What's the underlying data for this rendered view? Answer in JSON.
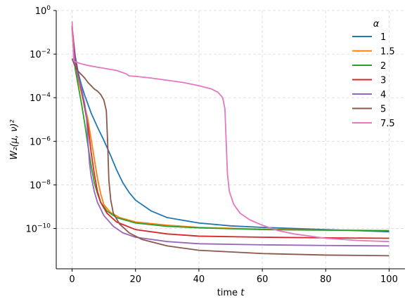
{
  "chart_data": {
    "type": "line",
    "xlabel_main": "time ",
    "xlabel_var": "t",
    "ylabel": "W₂(μ, ν)²",
    "xlim": [
      -5,
      105
    ],
    "xticks": [
      0,
      20,
      40,
      60,
      80,
      100
    ],
    "yscale": "log",
    "ylim_exp": [
      -11.85,
      0
    ],
    "yticks_exp": [
      -10,
      -8,
      -6,
      -4,
      -2,
      0
    ],
    "ytick_labels": [
      "10",
      "10",
      "10",
      "10",
      "10",
      "10"
    ],
    "ytick_exps": [
      "−10",
      "−8",
      "−6",
      "−4",
      "−2",
      "0"
    ],
    "grid": true,
    "legend": {
      "title": "α",
      "placement": "top-right"
    },
    "series": [
      {
        "name": "1",
        "color": "#1f77b4",
        "log10_points": [
          [
            0,
            -0.8
          ],
          [
            0.5,
            -1.5
          ],
          [
            1,
            -2.1
          ],
          [
            2,
            -2.9
          ],
          [
            3,
            -3.45
          ],
          [
            4,
            -3.9
          ],
          [
            6,
            -4.7
          ],
          [
            8,
            -5.35
          ],
          [
            10,
            -5.95
          ],
          [
            12,
            -6.6
          ],
          [
            14,
            -7.3
          ],
          [
            16,
            -7.9
          ],
          [
            18,
            -8.35
          ],
          [
            20,
            -8.7
          ],
          [
            25,
            -9.2
          ],
          [
            30,
            -9.5
          ],
          [
            40,
            -9.75
          ],
          [
            50,
            -9.88
          ],
          [
            60,
            -9.95
          ],
          [
            70,
            -10.0
          ],
          [
            80,
            -10.05
          ],
          [
            90,
            -10.1
          ],
          [
            100,
            -10.15
          ]
        ]
      },
      {
        "name": "1.5",
        "color": "#ff7f0e",
        "log10_points": [
          [
            0,
            -0.7
          ],
          [
            0.5,
            -1.6
          ],
          [
            1,
            -2.4
          ],
          [
            2,
            -3.2
          ],
          [
            3,
            -3.8
          ],
          [
            4,
            -4.4
          ],
          [
            5,
            -5.0
          ],
          [
            6,
            -5.9
          ],
          [
            7,
            -6.8
          ],
          [
            8,
            -7.7
          ],
          [
            9,
            -8.4
          ],
          [
            10,
            -8.9
          ],
          [
            12,
            -9.25
          ],
          [
            15,
            -9.5
          ],
          [
            20,
            -9.7
          ],
          [
            30,
            -9.85
          ],
          [
            40,
            -9.95
          ],
          [
            60,
            -10.03
          ],
          [
            80,
            -10.07
          ],
          [
            100,
            -10.1
          ]
        ]
      },
      {
        "name": "2",
        "color": "#2ca02c",
        "log10_points": [
          [
            0,
            -0.8
          ],
          [
            0.5,
            -1.8
          ],
          [
            1,
            -2.7
          ],
          [
            2,
            -3.5
          ],
          [
            3,
            -4.3
          ],
          [
            4,
            -5.2
          ],
          [
            5,
            -6.2
          ],
          [
            6,
            -7.1
          ],
          [
            7,
            -7.9
          ],
          [
            8,
            -8.4
          ],
          [
            9,
            -8.8
          ],
          [
            11,
            -9.2
          ],
          [
            14,
            -9.5
          ],
          [
            20,
            -9.75
          ],
          [
            30,
            -9.9
          ],
          [
            40,
            -9.97
          ],
          [
            60,
            -10.05
          ],
          [
            80,
            -10.08
          ],
          [
            100,
            -10.1
          ]
        ]
      },
      {
        "name": "3",
        "color": "#d62728",
        "log10_points": [
          [
            0,
            -0.7
          ],
          [
            0.5,
            -1.5
          ],
          [
            1,
            -2.3
          ],
          [
            2,
            -3.0
          ],
          [
            3,
            -3.7
          ],
          [
            4,
            -4.5
          ],
          [
            5,
            -5.3
          ],
          [
            6,
            -6.5
          ],
          [
            7,
            -7.5
          ],
          [
            8,
            -8.3
          ],
          [
            9,
            -8.8
          ],
          [
            11,
            -9.3
          ],
          [
            14,
            -9.7
          ],
          [
            20,
            -10.05
          ],
          [
            30,
            -10.25
          ],
          [
            40,
            -10.35
          ],
          [
            60,
            -10.4
          ],
          [
            80,
            -10.43
          ],
          [
            100,
            -10.45
          ]
        ]
      },
      {
        "name": "4",
        "color": "#9467bd",
        "log10_points": [
          [
            0,
            -0.9
          ],
          [
            0.5,
            -1.8
          ],
          [
            1,
            -2.5
          ],
          [
            2,
            -3.1
          ],
          [
            3,
            -3.6
          ],
          [
            4,
            -4.3
          ],
          [
            4.6,
            -5.0
          ],
          [
            5,
            -6.0
          ],
          [
            5.5,
            -7.0
          ],
          [
            6,
            -7.6
          ],
          [
            7,
            -8.3
          ],
          [
            8,
            -8.8
          ],
          [
            10,
            -9.4
          ],
          [
            13,
            -9.9
          ],
          [
            16,
            -10.2
          ],
          [
            20,
            -10.4
          ],
          [
            30,
            -10.6
          ],
          [
            40,
            -10.7
          ],
          [
            60,
            -10.75
          ],
          [
            80,
            -10.78
          ],
          [
            100,
            -10.8
          ]
        ]
      },
      {
        "name": "5",
        "color": "#8c564b",
        "log10_points": [
          [
            0,
            -2.2
          ],
          [
            1,
            -2.6
          ],
          [
            2,
            -2.8
          ],
          [
            3,
            -2.95
          ],
          [
            4,
            -3.1
          ],
          [
            5,
            -3.3
          ],
          [
            6,
            -3.45
          ],
          [
            7,
            -3.6
          ],
          [
            8,
            -3.7
          ],
          [
            9,
            -3.85
          ],
          [
            10,
            -4.1
          ],
          [
            10.8,
            -4.6
          ],
          [
            11.2,
            -6.0
          ],
          [
            11.6,
            -7.8
          ],
          [
            12.2,
            -8.7
          ],
          [
            13,
            -9.3
          ],
          [
            15,
            -9.8
          ],
          [
            18,
            -10.2
          ],
          [
            22,
            -10.5
          ],
          [
            30,
            -10.8
          ],
          [
            40,
            -11.0
          ],
          [
            60,
            -11.15
          ],
          [
            80,
            -11.22
          ],
          [
            100,
            -11.25
          ]
        ]
      },
      {
        "name": "7.5",
        "color": "#e377c2",
        "log10_points": [
          [
            0,
            -0.5
          ],
          [
            0.3,
            -1.5
          ],
          [
            0.5,
            -2.3
          ],
          [
            1,
            -2.35
          ],
          [
            3,
            -2.45
          ],
          [
            6,
            -2.55
          ],
          [
            10,
            -2.65
          ],
          [
            14,
            -2.75
          ],
          [
            17,
            -2.9
          ],
          [
            18,
            -3.0
          ],
          [
            20,
            -3.02
          ],
          [
            25,
            -3.1
          ],
          [
            30,
            -3.2
          ],
          [
            35,
            -3.3
          ],
          [
            40,
            -3.45
          ],
          [
            44,
            -3.6
          ],
          [
            46,
            -3.75
          ],
          [
            47.5,
            -4.0
          ],
          [
            48.2,
            -4.5
          ],
          [
            48.6,
            -6.0
          ],
          [
            49,
            -7.5
          ],
          [
            49.6,
            -8.3
          ],
          [
            51,
            -8.9
          ],
          [
            53,
            -9.3
          ],
          [
            56,
            -9.6
          ],
          [
            60,
            -9.85
          ],
          [
            65,
            -10.1
          ],
          [
            70,
            -10.25
          ],
          [
            80,
            -10.45
          ],
          [
            90,
            -10.55
          ],
          [
            100,
            -10.6
          ]
        ]
      }
    ]
  }
}
